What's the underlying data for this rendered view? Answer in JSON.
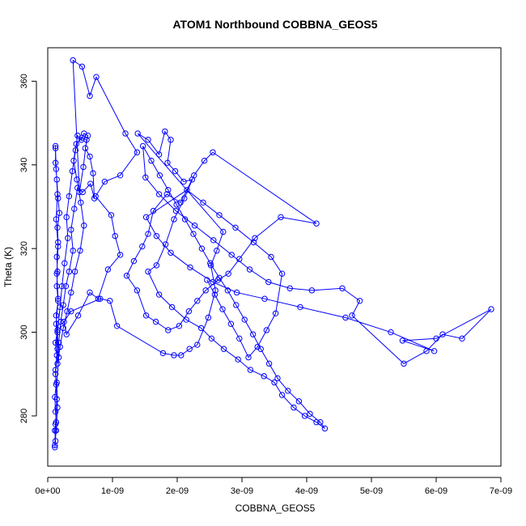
{
  "chart_data": {
    "type": "line",
    "title": "ATOM1 Northbound COBBNA_GEOS5",
    "xlabel": "COBBNA_GEOS5",
    "ylabel": "Theta (K)",
    "xlim": [
      0,
      7e-09
    ],
    "ylim": [
      268,
      368
    ],
    "x_ticks": [
      {
        "value": 0,
        "label": "0e+00"
      },
      {
        "value": 1e-09,
        "label": "1e-09"
      },
      {
        "value": 2e-09,
        "label": "2e-09"
      },
      {
        "value": 3e-09,
        "label": "3e-09"
      },
      {
        "value": 4e-09,
        "label": "4e-09"
      },
      {
        "value": 5e-09,
        "label": "5e-09"
      },
      {
        "value": 6e-09,
        "label": "6e-09"
      },
      {
        "value": 7e-09,
        "label": "7e-09"
      }
    ],
    "y_ticks": [
      {
        "value": 280,
        "label": "280"
      },
      {
        "value": 300,
        "label": "300"
      },
      {
        "value": 320,
        "label": "320"
      },
      {
        "value": 340,
        "label": "340"
      },
      {
        "value": 360,
        "label": "360"
      }
    ],
    "grid": false,
    "legend": "none",
    "series_color": "#0000ff",
    "series": [
      {
        "marker": "open-circle",
        "points": [
          [
            1.1e-10,
            272.5
          ],
          [
            1.2e-10,
            274.0
          ],
          [
            1.1e-10,
            276.5
          ],
          [
            1.3e-10,
            278.5
          ],
          [
            1.2e-10,
            281.0
          ],
          [
            1.1e-10,
            284.5
          ],
          [
            1.3e-10,
            287.5
          ],
          [
            1.2e-10,
            291.0
          ],
          [
            1.4e-10,
            294.5
          ],
          [
            1.2e-10,
            297.5
          ],
          [
            1.5e-10,
            300.5
          ],
          [
            1.3e-10,
            304.0
          ],
          [
            1.6e-10,
            307.5
          ],
          [
            1.4e-10,
            311.0
          ],
          [
            1.5e-10,
            314.5
          ],
          [
            1.4e-10,
            318.0
          ],
          [
            1.6e-10,
            321.5
          ],
          [
            1.5e-10,
            325.0
          ],
          [
            1.8e-10,
            328.5
          ],
          [
            1.6e-10,
            332.0
          ],
          [
            1.4e-10,
            336.5
          ],
          [
            1.2e-10,
            340.5
          ],
          [
            1.2e-10,
            344.5
          ],
          [
            1.2e-10,
            344.0
          ],
          [
            1.3e-10,
            339.0
          ],
          [
            1.5e-10,
            333.0
          ],
          [
            1.3e-10,
            327.0
          ],
          [
            1.6e-10,
            320.5
          ],
          [
            1.4e-10,
            314.0
          ],
          [
            1.6e-10,
            308.0
          ],
          [
            1.3e-10,
            302.0
          ],
          [
            1.5e-10,
            296.0
          ],
          [
            1.2e-10,
            290.0
          ],
          [
            1.4e-10,
            284.0
          ],
          [
            1.2e-10,
            278.0
          ],
          [
            1.1e-10,
            273.0
          ],
          [
            1.3e-10,
            276.5
          ],
          [
            1.5e-10,
            282.0
          ],
          [
            1.4e-10,
            288.0
          ],
          [
            1.7e-10,
            294.0
          ],
          [
            1.5e-10,
            300.0
          ],
          [
            1.9e-10,
            306.0
          ],
          [
            2.2e-10,
            311.0
          ],
          [
            2.6e-10,
            316.5
          ],
          [
            3.1e-10,
            322.5
          ],
          [
            2.9e-10,
            327.5
          ],
          [
            3.3e-10,
            332.5
          ],
          [
            3.8e-10,
            338.5
          ],
          [
            4.3e-10,
            343.5
          ],
          [
            4.6e-10,
            347.0
          ],
          [
            5.2e-10,
            346.0
          ],
          [
            5.6e-10,
            347.5
          ],
          [
            6.2e-10,
            347.0
          ],
          [
            5.8e-10,
            344.0
          ],
          [
            6.5e-10,
            342.0
          ],
          [
            7e-10,
            338.0
          ],
          [
            7.2e-10,
            332.0
          ],
          [
            6.6e-10,
            335.5
          ],
          [
            5.4e-10,
            333.5
          ],
          [
            4.6e-10,
            334.5
          ],
          [
            4.1e-10,
            329.5
          ],
          [
            3.6e-10,
            324.5
          ],
          [
            3.9e-10,
            319.5
          ],
          [
            3.3e-10,
            314.5
          ],
          [
            2.8e-10,
            311.0
          ],
          [
            2.4e-10,
            306.5
          ],
          [
            2e-10,
            302.5
          ],
          [
            1.7e-10,
            297.5
          ],
          [
            1.5e-10,
            292.5
          ],
          [
            1.9e-10,
            296.5
          ],
          [
            2.4e-10,
            301.0
          ],
          [
            3e-10,
            305.0
          ],
          [
            3.6e-10,
            309.5
          ],
          [
            4.2e-10,
            314.5
          ],
          [
            5e-10,
            319.5
          ],
          [
            5.6e-10,
            325.5
          ],
          [
            5.1e-10,
            331.0
          ],
          [
            4.5e-10,
            336.5
          ],
          [
            4e-10,
            341.0
          ],
          [
            4.4e-10,
            345.0
          ],
          [
            5.3e-10,
            346.5
          ],
          [
            6e-10,
            346.0
          ],
          [
            5.5e-10,
            339.5
          ],
          [
            4.9e-10,
            333.5
          ],
          [
            3.9e-10,
            365.0
          ],
          [
            5.3e-10,
            363.5
          ],
          [
            6.5e-10,
            356.5
          ],
          [
            7.5e-10,
            361.0
          ],
          [
            1.2e-09,
            347.5
          ],
          [
            1.38e-09,
            343.0
          ],
          [
            1.12e-09,
            337.5
          ],
          [
            8.8e-10,
            336.0
          ],
          [
            7.4e-10,
            332.5
          ],
          [
            9.8e-10,
            328.0
          ],
          [
            1.04e-09,
            323.0
          ],
          [
            1.12e-09,
            318.5
          ],
          [
            9.3e-10,
            315.0
          ],
          [
            7.8e-10,
            308.0
          ],
          [
            6.5e-10,
            309.5
          ],
          [
            4.7e-10,
            304.0
          ],
          [
            2.9e-10,
            299.5
          ],
          [
            2.5e-10,
            302.5
          ],
          [
            3.6e-10,
            305.0
          ],
          [
            8.1e-10,
            308.0
          ],
          [
            9.6e-10,
            307.5
          ],
          [
            1.07e-09,
            301.5
          ],
          [
            1.78e-09,
            295.0
          ],
          [
            1.95e-09,
            294.5
          ],
          [
            2.06e-09,
            294.5
          ],
          [
            2.19e-09,
            296.0
          ],
          [
            2.31e-09,
            297.0
          ],
          [
            2.48e-09,
            303.5
          ],
          [
            2.59e-09,
            310.0
          ],
          [
            2.52e-09,
            316.0
          ],
          [
            2.61e-09,
            319.5
          ],
          [
            2.71e-09,
            324.0
          ],
          [
            1.39e-09,
            347.5
          ],
          [
            1.55e-09,
            346.0
          ],
          [
            1.72e-09,
            342.5
          ],
          [
            1.81e-09,
            348.0
          ],
          [
            1.9e-09,
            346.0
          ],
          [
            1.85e-09,
            340.5
          ],
          [
            1.97e-09,
            338.5
          ],
          [
            2.1e-09,
            336.0
          ],
          [
            2.23e-09,
            336.5
          ],
          [
            2.05e-09,
            331.0
          ],
          [
            1.84e-09,
            333.0
          ],
          [
            1.63e-09,
            329.0
          ],
          [
            1.55e-09,
            323.5
          ],
          [
            1.46e-09,
            320.5
          ],
          [
            1.33e-09,
            317.0
          ],
          [
            1.22e-09,
            313.5
          ],
          [
            1.38e-09,
            310.0
          ],
          [
            1.52e-09,
            304.0
          ],
          [
            1.67e-09,
            302.5
          ],
          [
            1.86e-09,
            300.5
          ],
          [
            2.03e-09,
            301.5
          ],
          [
            2.18e-09,
            305.0
          ],
          [
            2.31e-09,
            307.5
          ],
          [
            2.44e-09,
            310.0
          ],
          [
            2.63e-09,
            312.5
          ],
          [
            2.79e-09,
            314.0
          ],
          [
            2.96e-09,
            317.5
          ],
          [
            3.2e-09,
            322.5
          ],
          [
            3.6e-09,
            327.5
          ],
          [
            4.15e-09,
            326.0
          ],
          [
            2.55e-09,
            343.0
          ],
          [
            2.42e-09,
            341.0
          ],
          [
            2.26e-09,
            337.5
          ],
          [
            2.11e-09,
            332.0
          ],
          [
            1.95e-09,
            327.0
          ],
          [
            1.82e-09,
            321.0
          ],
          [
            1.68e-09,
            316.0
          ],
          [
            1.55e-09,
            314.5
          ],
          [
            1.72e-09,
            309.0
          ],
          [
            1.92e-09,
            306.0
          ],
          [
            2.14e-09,
            303.0
          ],
          [
            2.37e-09,
            301.0
          ],
          [
            2.53e-09,
            298.5
          ],
          [
            2.72e-09,
            296.0
          ],
          [
            2.94e-09,
            293.5
          ],
          [
            3.13e-09,
            291.0
          ],
          [
            3.34e-09,
            289.5
          ],
          [
            3.5e-09,
            288.0
          ],
          [
            3.62e-09,
            285.0
          ],
          [
            3.8e-09,
            282.0
          ],
          [
            3.97e-09,
            280.0
          ],
          [
            4.15e-09,
            278.5
          ],
          [
            4.28e-09,
            277.0
          ],
          [
            4.21e-09,
            278.5
          ],
          [
            4.05e-09,
            280.5
          ],
          [
            3.88e-09,
            283.5
          ],
          [
            3.71e-09,
            286.0
          ],
          [
            3.55e-09,
            289.0
          ],
          [
            3.42e-09,
            292.5
          ],
          [
            3.29e-09,
            296.0
          ],
          [
            3.17e-09,
            299.5
          ],
          [
            3.04e-09,
            303.0
          ],
          [
            2.91e-09,
            306.5
          ],
          [
            2.78e-09,
            310.0
          ],
          [
            2.65e-09,
            313.0
          ],
          [
            2.51e-09,
            316.5
          ],
          [
            2.38e-09,
            320.0
          ],
          [
            2.25e-09,
            323.5
          ],
          [
            2.12e-09,
            327.0
          ],
          [
            1.99e-09,
            330.5
          ],
          [
            1.86e-09,
            334.0
          ],
          [
            1.73e-09,
            337.5
          ],
          [
            1.6e-09,
            341.0
          ],
          [
            1.47e-09,
            344.5
          ],
          [
            1.51e-09,
            337.0
          ],
          [
            1.72e-09,
            333.0
          ],
          [
            1.98e-09,
            329.0
          ],
          [
            2.27e-09,
            325.5
          ],
          [
            2.56e-09,
            322.0
          ],
          [
            2.84e-09,
            318.5
          ],
          [
            3.12e-09,
            315.0
          ],
          [
            3.41e-09,
            312.0
          ],
          [
            3.74e-09,
            310.5
          ],
          [
            4.08e-09,
            310.0
          ],
          [
            4.55e-09,
            310.5
          ],
          [
            4.82e-09,
            307.5
          ],
          [
            4.7e-09,
            304.0
          ],
          [
            5.5e-09,
            292.5
          ],
          [
            5.85e-09,
            295.5
          ],
          [
            6.1e-09,
            299.5
          ],
          [
            6.4e-09,
            298.5
          ],
          [
            6.85e-09,
            305.5
          ],
          [
            6e-09,
            298.5
          ],
          [
            5.48e-09,
            298.0
          ],
          [
            5.97e-09,
            295.5
          ],
          [
            5.3e-09,
            300.0
          ],
          [
            4.6e-09,
            303.5
          ],
          [
            3.9e-09,
            306.0
          ],
          [
            3.35e-09,
            308.0
          ],
          [
            2.92e-09,
            309.5
          ],
          [
            2.55e-09,
            312.0
          ],
          [
            2.2e-09,
            315.5
          ],
          [
            1.9e-09,
            319.0
          ],
          [
            1.68e-09,
            323.0
          ],
          [
            1.52e-09,
            327.5
          ],
          [
            2.15e-09,
            334.0
          ],
          [
            2.4e-09,
            331.0
          ],
          [
            2.65e-09,
            328.0
          ],
          [
            2.9e-09,
            325.0
          ],
          [
            3.18e-09,
            321.5
          ],
          [
            3.45e-09,
            318.0
          ],
          [
            3.62e-09,
            314.0
          ],
          [
            3.52e-09,
            304.5
          ],
          [
            3.38e-09,
            300.5
          ],
          [
            3.24e-09,
            296.5
          ],
          [
            3.1e-09,
            294.0
          ],
          [
            2.96e-09,
            298.5
          ],
          [
            2.83e-09,
            302.0
          ],
          [
            2.7e-09,
            305.5
          ],
          [
            2.58e-09,
            309.0
          ],
          [
            2.46e-09,
            312.5
          ]
        ]
      }
    ]
  }
}
